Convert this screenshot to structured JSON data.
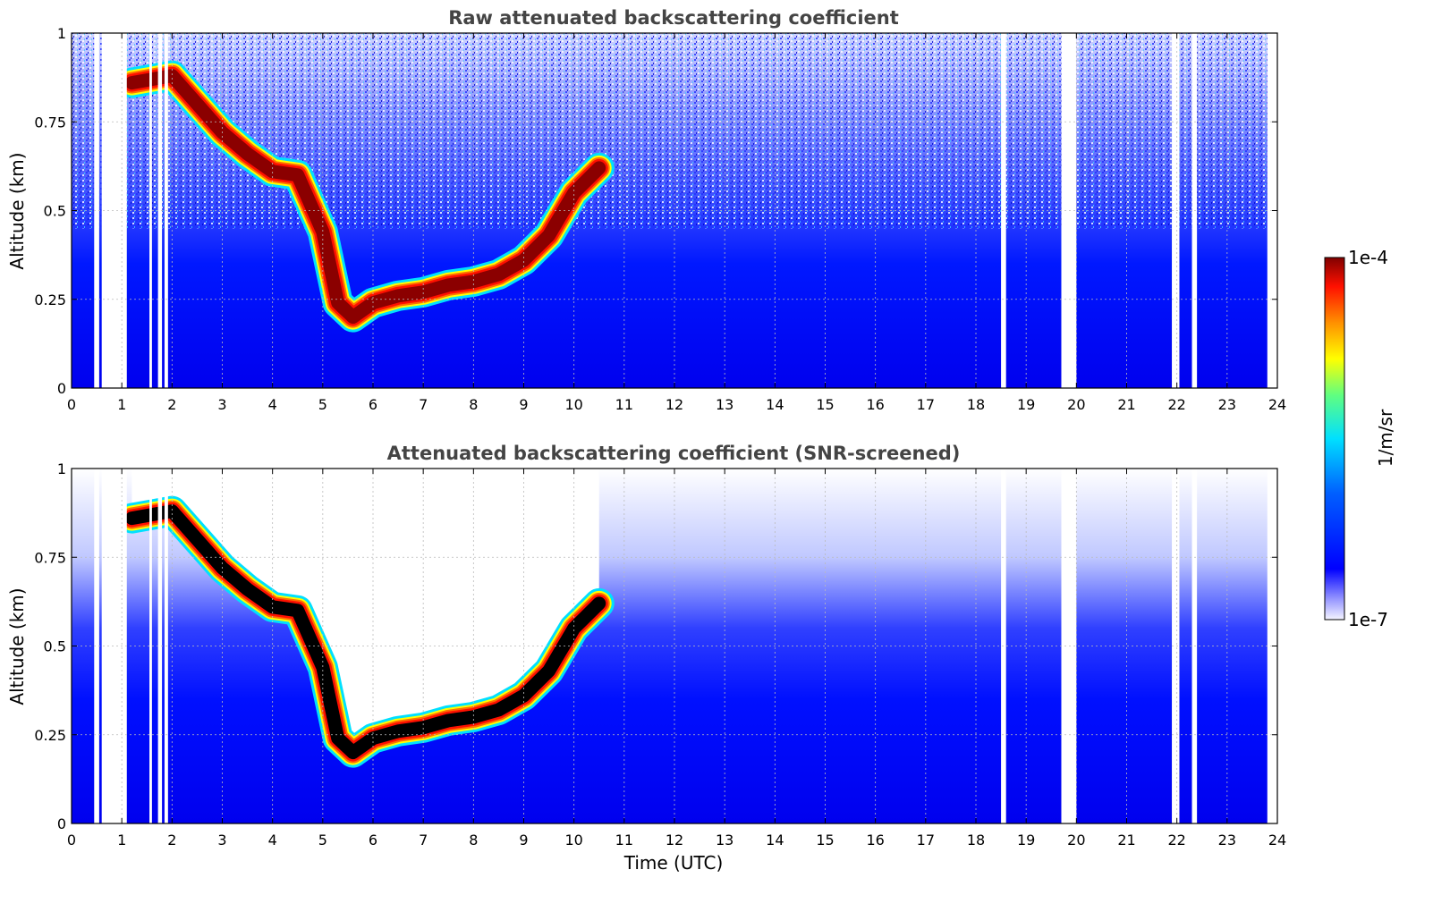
{
  "chart_data": [
    {
      "type": "heatmap",
      "title": "Raw attenuated backscattering coefficient",
      "xlabel": "",
      "ylabel": "Altitude (km)",
      "xlim": [
        0,
        24
      ],
      "ylim": [
        0,
        1
      ],
      "x_ticks": [
        "0",
        "1",
        "2",
        "3",
        "4",
        "5",
        "6",
        "7",
        "8",
        "9",
        "10",
        "11",
        "12",
        "13",
        "14",
        "15",
        "16",
        "17",
        "18",
        "19",
        "20",
        "21",
        "22",
        "23",
        "24"
      ],
      "y_ticks": [
        "0",
        "0.25",
        "0.5",
        "0.75",
        "1"
      ],
      "grid": true,
      "colormap": "jet",
      "layer": {
        "name": "",
        "points": [
          [
            1.2,
            0.86
          ],
          [
            2.0,
            0.88
          ],
          [
            2.5,
            0.8
          ],
          [
            3.0,
            0.72
          ],
          [
            3.5,
            0.66
          ],
          [
            4.0,
            0.61
          ],
          [
            4.5,
            0.6
          ],
          [
            5.0,
            0.44
          ],
          [
            5.3,
            0.24
          ],
          [
            5.6,
            0.2
          ],
          [
            6.0,
            0.24
          ],
          [
            6.5,
            0.26
          ],
          [
            7.0,
            0.27
          ],
          [
            7.5,
            0.29
          ],
          [
            8.0,
            0.3
          ],
          [
            8.5,
            0.32
          ],
          [
            9.0,
            0.36
          ],
          [
            9.5,
            0.43
          ],
          [
            10.0,
            0.55
          ],
          [
            10.5,
            0.62
          ]
        ]
      },
      "data_gaps_hours": [
        [
          0.45,
          0.55
        ],
        [
          0.6,
          1.1
        ],
        [
          1.55,
          1.6
        ],
        [
          1.72,
          1.8
        ],
        [
          1.85,
          1.92
        ],
        [
          18.5,
          18.6
        ],
        [
          19.7,
          20.0
        ],
        [
          21.9,
          22.05
        ],
        [
          22.3,
          22.4
        ]
      ]
    },
    {
      "type": "heatmap",
      "title": "Attenuated backscattering coefficient (SNR-screened)",
      "xlabel": "Time (UTC)",
      "ylabel": "Altitude (km)",
      "xlim": [
        0,
        24
      ],
      "ylim": [
        0,
        1
      ],
      "x_ticks": [
        "0",
        "1",
        "2",
        "3",
        "4",
        "5",
        "6",
        "7",
        "8",
        "9",
        "10",
        "11",
        "12",
        "13",
        "14",
        "15",
        "16",
        "17",
        "18",
        "19",
        "20",
        "21",
        "22",
        "23",
        "24"
      ],
      "y_ticks": [
        "0",
        "0.25",
        "0.5",
        "0.75",
        "1"
      ],
      "grid": true,
      "colormap": "jet",
      "layer": {
        "name": "",
        "points": [
          [
            1.2,
            0.86
          ],
          [
            2.0,
            0.88
          ],
          [
            2.5,
            0.8
          ],
          [
            3.0,
            0.72
          ],
          [
            3.5,
            0.66
          ],
          [
            4.0,
            0.61
          ],
          [
            4.5,
            0.6
          ],
          [
            5.0,
            0.44
          ],
          [
            5.3,
            0.24
          ],
          [
            5.6,
            0.2
          ],
          [
            6.0,
            0.24
          ],
          [
            6.5,
            0.26
          ],
          [
            7.0,
            0.27
          ],
          [
            7.5,
            0.29
          ],
          [
            8.0,
            0.3
          ],
          [
            8.5,
            0.32
          ],
          [
            9.0,
            0.36
          ],
          [
            9.5,
            0.43
          ],
          [
            10.0,
            0.55
          ],
          [
            10.5,
            0.62
          ]
        ]
      },
      "data_gaps_hours": [
        [
          0.45,
          0.55
        ],
        [
          0.6,
          1.1
        ],
        [
          1.55,
          1.6
        ],
        [
          1.72,
          1.8
        ],
        [
          1.85,
          1.92
        ],
        [
          18.5,
          18.6
        ],
        [
          19.7,
          20.0
        ],
        [
          21.9,
          22.05
        ],
        [
          22.3,
          22.4
        ]
      ]
    }
  ],
  "colorbar": {
    "label": "1/m/sr",
    "max_label": "1e-4",
    "min_label": "1e-7",
    "scale": "log",
    "colors": [
      "#f0f0ff",
      "#3030ff",
      "#0000ff",
      "#0080ff",
      "#00e0ff",
      "#40ff90",
      "#ffff00",
      "#ffa000",
      "#ff2000",
      "#8b0000"
    ]
  }
}
